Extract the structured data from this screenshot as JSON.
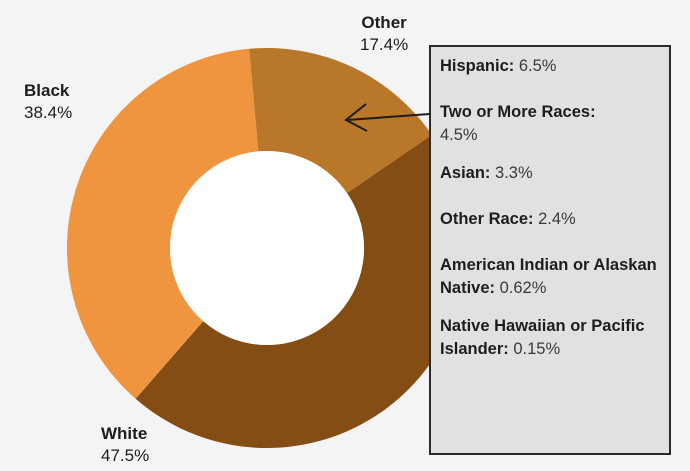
{
  "chart_data": {
    "type": "pie",
    "variant": "donut",
    "title": "",
    "categories": [
      "Black",
      "Other",
      "White"
    ],
    "values": [
      38.4,
      17.4,
      47.5
    ],
    "value_suffix": "%",
    "colors": [
      "#ef9540",
      "#b97729",
      "#844d13"
    ],
    "legend": "none",
    "breakdown": {
      "parent": "Other",
      "items": [
        {
          "name": "Hispanic:",
          "value": "6.5%"
        },
        {
          "name": "Two or More Races:",
          "value": "4.5%"
        },
        {
          "name": "Asian:",
          "value": "3.3%"
        },
        {
          "name": "Other Race:",
          "value": "2.4%"
        },
        {
          "name": "American Indian or Alaskan Native:",
          "value": "0.62%"
        },
        {
          "name": "Native Hawaiian or Pacific Islander:",
          "value": "0.15%"
        }
      ]
    }
  }
}
